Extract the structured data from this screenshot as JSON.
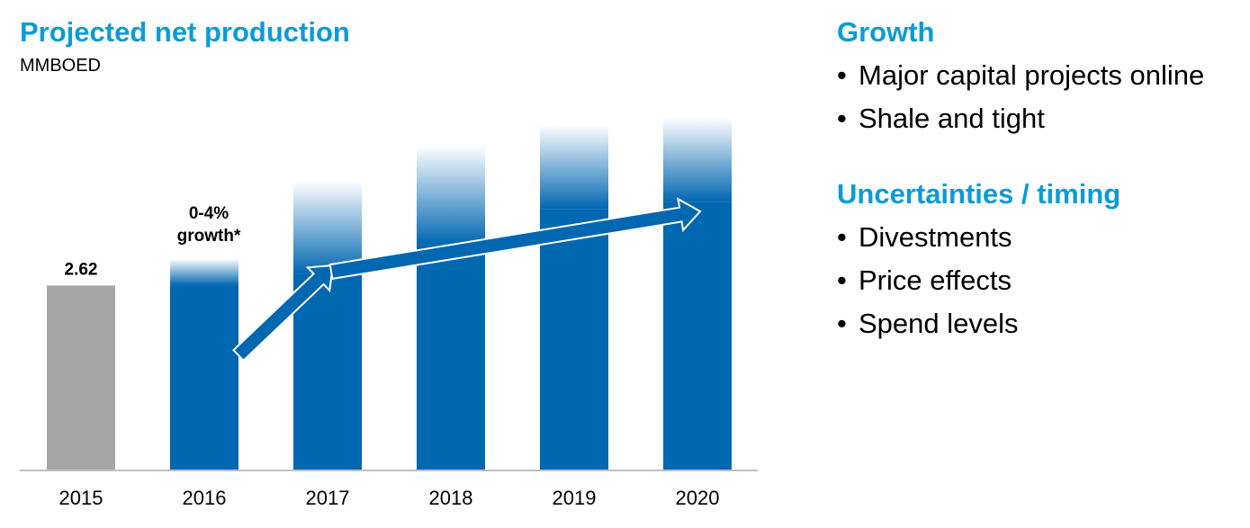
{
  "chart_data": {
    "type": "bar",
    "title": "Projected net production",
    "subtitle": "MMBOED",
    "categories": [
      "2015",
      "2016",
      "2017",
      "2018",
      "2019",
      "2020"
    ],
    "values": [
      2.62,
      2.62,
      2.78,
      3.2,
      3.7,
      3.8
    ],
    "range_tops": [
      2.62,
      3.0,
      4.1,
      4.6,
      4.9,
      5.0
    ],
    "data_labels": [
      "2.62",
      "",
      "",
      "",
      "",
      ""
    ],
    "annotation_text": [
      "0-4%",
      "growth*"
    ],
    "ylim": [
      0,
      5.2
    ],
    "grid": false,
    "legend": "none",
    "colors": {
      "actual": "#A6A6A6",
      "projected": "#0067B1",
      "arrow": "#0067B1"
    }
  },
  "right_panel": {
    "growth_heading": "Growth",
    "growth_items": [
      "Major capital projects online",
      "Shale and tight"
    ],
    "uncertainty_heading": "Uncertainties / timing",
    "uncertainty_items": [
      "Divestments",
      "Price effects",
      "Spend levels"
    ],
    "bullet_symbol": "•"
  }
}
